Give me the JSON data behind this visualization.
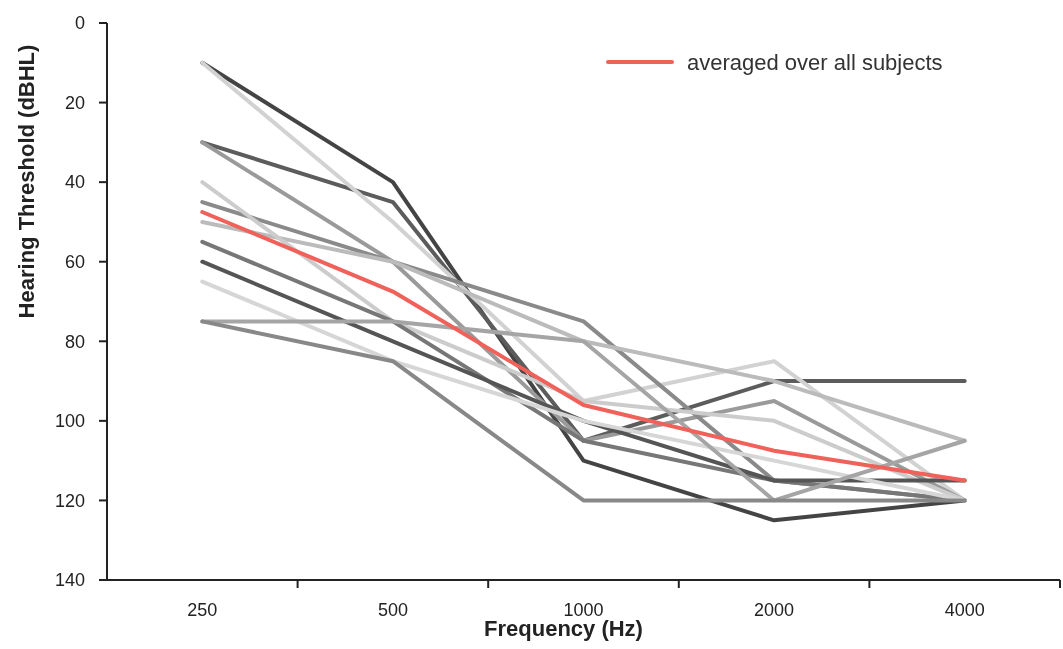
{
  "chart_data": {
    "type": "line",
    "xlabel": "Frequency (Hz)",
    "ylabel": "Hearing Threshold (dBHL)",
    "categories": [
      "250",
      "500",
      "1000",
      "2000",
      "4000"
    ],
    "ylim": [
      140,
      0
    ],
    "yticks": [
      0,
      20,
      40,
      60,
      80,
      100,
      120,
      140
    ],
    "grid": false,
    "legend": "top right",
    "marker": "none",
    "line_style": "solid",
    "series": [
      {
        "color": "#444444",
        "values": [
          10,
          40,
          110,
          125,
          120
        ]
      },
      {
        "color": "#5c5c5c",
        "values": [
          30,
          45,
          105,
          90,
          90
        ]
      },
      {
        "color": "#d2d2d2",
        "values": [
          10,
          50,
          95,
          85,
          120
        ]
      },
      {
        "color": "#9a9a9a",
        "values": [
          30,
          60,
          105,
          95,
          120
        ]
      },
      {
        "color": "#8a8a8a",
        "values": [
          45,
          60,
          75,
          115,
          120
        ]
      },
      {
        "color": "#bbbbbb",
        "values": [
          50,
          60,
          80,
          90,
          105
        ]
      },
      {
        "color": "#cccccc",
        "values": [
          40,
          75,
          95,
          100,
          120
        ]
      },
      {
        "color": "#777777",
        "values": [
          55,
          75,
          105,
          115,
          120
        ]
      },
      {
        "color": "#555555",
        "values": [
          60,
          80,
          100,
          115,
          115
        ]
      },
      {
        "color": "#d6d6d6",
        "values": [
          65,
          85,
          100,
          110,
          120
        ]
      },
      {
        "color": "#a5a5a5",
        "values": [
          75,
          75,
          80,
          120,
          105
        ]
      },
      {
        "color": "#888888",
        "values": [
          75,
          85,
          120,
          120,
          120
        ]
      },
      {
        "name": "averaged over all subjects",
        "color": "#f0615a",
        "values": [
          47.5,
          67.5,
          96,
          107.5,
          115
        ]
      }
    ]
  }
}
